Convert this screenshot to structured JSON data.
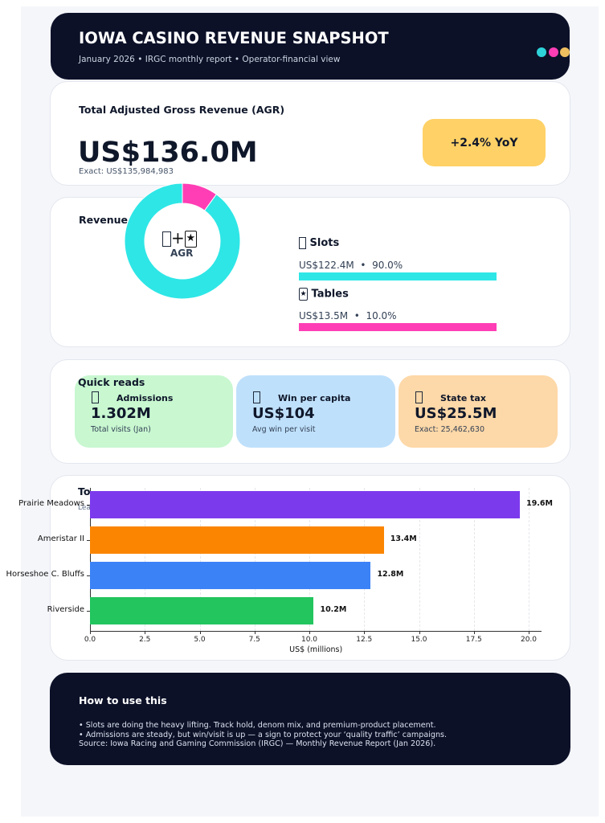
{
  "header": {
    "title": "IOWA CASINO REVENUE SNAPSHOT",
    "subtitle": "January 2026 • IRGC monthly report • Operator-financial view",
    "dot_colors": [
      "#2ed3da",
      "#ff3eb5",
      "#f0c060"
    ]
  },
  "agr": {
    "label": "Total Adjusted Gross Revenue (AGR)",
    "value": "US$136.0M",
    "exact": "Exact: US$135,984,983",
    "yoy": "+2.4% YoY"
  },
  "mix": {
    "title": "Revenue",
    "center_label": "AGR",
    "center_icon": "+",
    "items": [
      {
        "name": "Slots",
        "icon": "slot-machine-icon",
        "value": "US$122.4M  •  90.0%",
        "share": 90.0,
        "color": "#2ee6e6"
      },
      {
        "name": "Tables",
        "icon": "star-card-icon",
        "value": "US$13.5M  •  10.0%",
        "share": 10.0,
        "color": "#ff3eb5"
      }
    ]
  },
  "quick": {
    "title": "Quick reads",
    "cards": [
      {
        "label": "Admissions",
        "value": "1.302M",
        "sub": "Total visits (Jan)",
        "color": "#c8f7d0"
      },
      {
        "label": "Win per capita",
        "value": "US$104",
        "sub": "Avg win per visit",
        "color": "#bfe0fb"
      },
      {
        "label": "State tax",
        "value": "US$25.5M",
        "sub": "Exact: 25,462,630",
        "color": "#fdd8a8"
      }
    ]
  },
  "chart_data": {
    "type": "bar",
    "orientation": "horizontal",
    "title": "To",
    "subtitle": "Lea",
    "categories": [
      "Prairie Meadows",
      "Ameristar II",
      "Horseshoe C. Bluffs",
      "Riverside"
    ],
    "values": [
      19.6,
      13.4,
      12.8,
      10.2
    ],
    "data_labels": [
      "19.6M",
      "13.4M",
      "12.8M",
      "10.2M"
    ],
    "colors": [
      "#7c3aed",
      "#fb8500",
      "#3b82f6",
      "#22c55e"
    ],
    "xlabel": "US$ (millions)",
    "xlim": [
      0,
      20.6
    ],
    "xticks": [
      "0.0",
      "2.5",
      "5.0",
      "7.5",
      "10.0",
      "12.5",
      "15.0",
      "17.5",
      "20.0"
    ],
    "grid": true
  },
  "footer": {
    "title": "How to use this",
    "lines": [
      "• Slots are doing the heavy lifting. Track hold, denom mix, and premium-product placement.",
      "• Admissions are steady, but win/visit is up — a sign to protect your ‘quality traffic’ campaigns.",
      "Source: Iowa Racing and Gaming Commission (IRGC) — Monthly Revenue Report (Jan 2026)."
    ]
  }
}
